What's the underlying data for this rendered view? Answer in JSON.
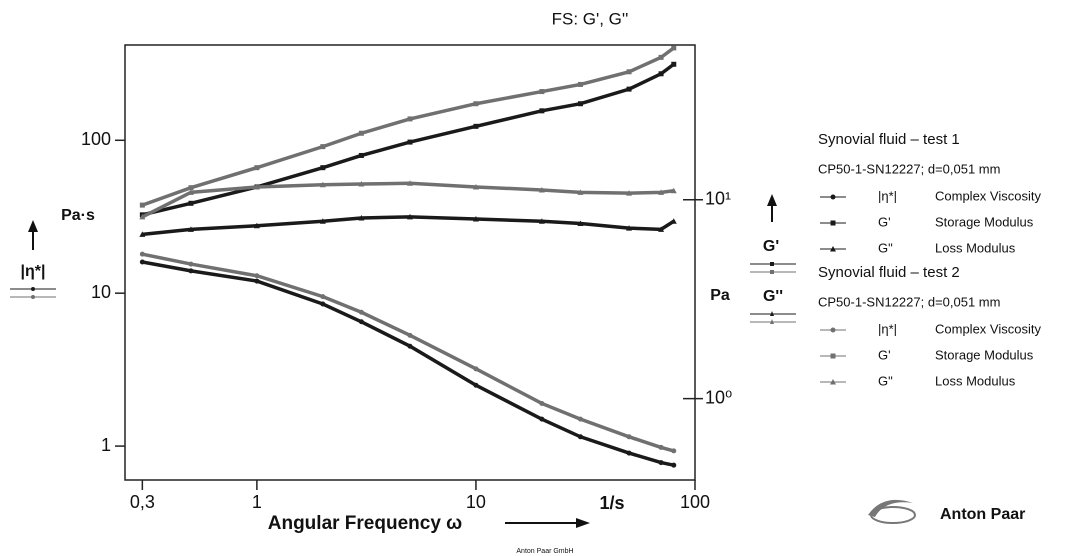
{
  "chart_data": {
    "type": "line",
    "title": "FS: G', G''",
    "x_label": "Angular Frequency ω",
    "x_unit": "1/s",
    "y_label": "Pa·s",
    "y_symbol": "|η*|",
    "y2_label": "Pa",
    "y2_symbols": [
      "G'",
      "G''"
    ],
    "xlog": true,
    "ylog": true,
    "y2log": true,
    "xlim": [
      0.25,
      100
    ],
    "xticks": [
      {
        "value": 0.3,
        "label": "0,3"
      },
      1,
      10,
      100
    ],
    "ylim": [
      0.6,
      420
    ],
    "yticks": [
      1,
      10,
      100
    ],
    "y2lim": [
      0.39,
      60
    ],
    "y2ticks": [
      {
        "value": 1,
        "label": "10⁰"
      },
      {
        "value": 10,
        "label": "10¹"
      }
    ],
    "x": [
      0.3,
      0.5,
      1,
      2,
      3,
      5,
      10,
      20,
      30,
      50,
      70,
      80
    ],
    "legend_groups": [
      {
        "title": "Synovial fluid – test 1",
        "subtitle": "CP50-1-SN12227; d=0,051 mm"
      },
      {
        "title": "Synovial fluid – test 2",
        "subtitle": "CP50-1-SN12227; d=0,051 mm"
      }
    ],
    "series": [
      {
        "name": "|η*|",
        "description": "Complex Viscosity",
        "group": 0,
        "marker": "circle",
        "color": "#1a1a1a",
        "values": [
          16,
          14,
          12,
          8.5,
          6.5,
          4.5,
          2.5,
          1.5,
          1.15,
          0.9,
          0.78,
          0.75
        ]
      },
      {
        "name": "G'",
        "description": "Storage Modulus",
        "group": 0,
        "marker": "square",
        "color": "#1a1a1a",
        "axis": "y2",
        "values": [
          8.4,
          9.6,
          11.6,
          14.5,
          16.7,
          19.5,
          23.4,
          28,
          30.4,
          36,
          43,
          48
        ]
      },
      {
        "name": "G\"",
        "description": "Loss Modulus",
        "group": 0,
        "marker": "triangle",
        "color": "#1a1a1a",
        "axis": "y2",
        "values": [
          6.7,
          7.1,
          7.4,
          7.8,
          8.1,
          8.2,
          8.0,
          7.8,
          7.6,
          7.2,
          7.1,
          7.8
        ]
      },
      {
        "name": "|η*|",
        "description": "Complex Viscosity",
        "group": 1,
        "marker": "circle",
        "color": "#707070",
        "values": [
          18,
          15.5,
          13,
          9.5,
          7.5,
          5.3,
          3.2,
          1.9,
          1.5,
          1.15,
          0.98,
          0.93
        ]
      },
      {
        "name": "G'",
        "description": "Storage Modulus",
        "group": 1,
        "marker": "square",
        "color": "#707070",
        "axis": "y2",
        "values": [
          9.4,
          11.5,
          14.5,
          18.5,
          21.6,
          25.5,
          30.4,
          35,
          38,
          44,
          52,
          58
        ]
      },
      {
        "name": "G\"",
        "description": "Loss Modulus",
        "group": 1,
        "marker": "triangle",
        "color": "#707070",
        "axis": "y2",
        "values": [
          8.2,
          10.9,
          11.6,
          11.9,
          12,
          12.1,
          11.6,
          11.2,
          10.9,
          10.8,
          10.9,
          11.1
        ]
      }
    ],
    "footer": "Anton Paar GmbH",
    "logo": "Anton Paar"
  }
}
